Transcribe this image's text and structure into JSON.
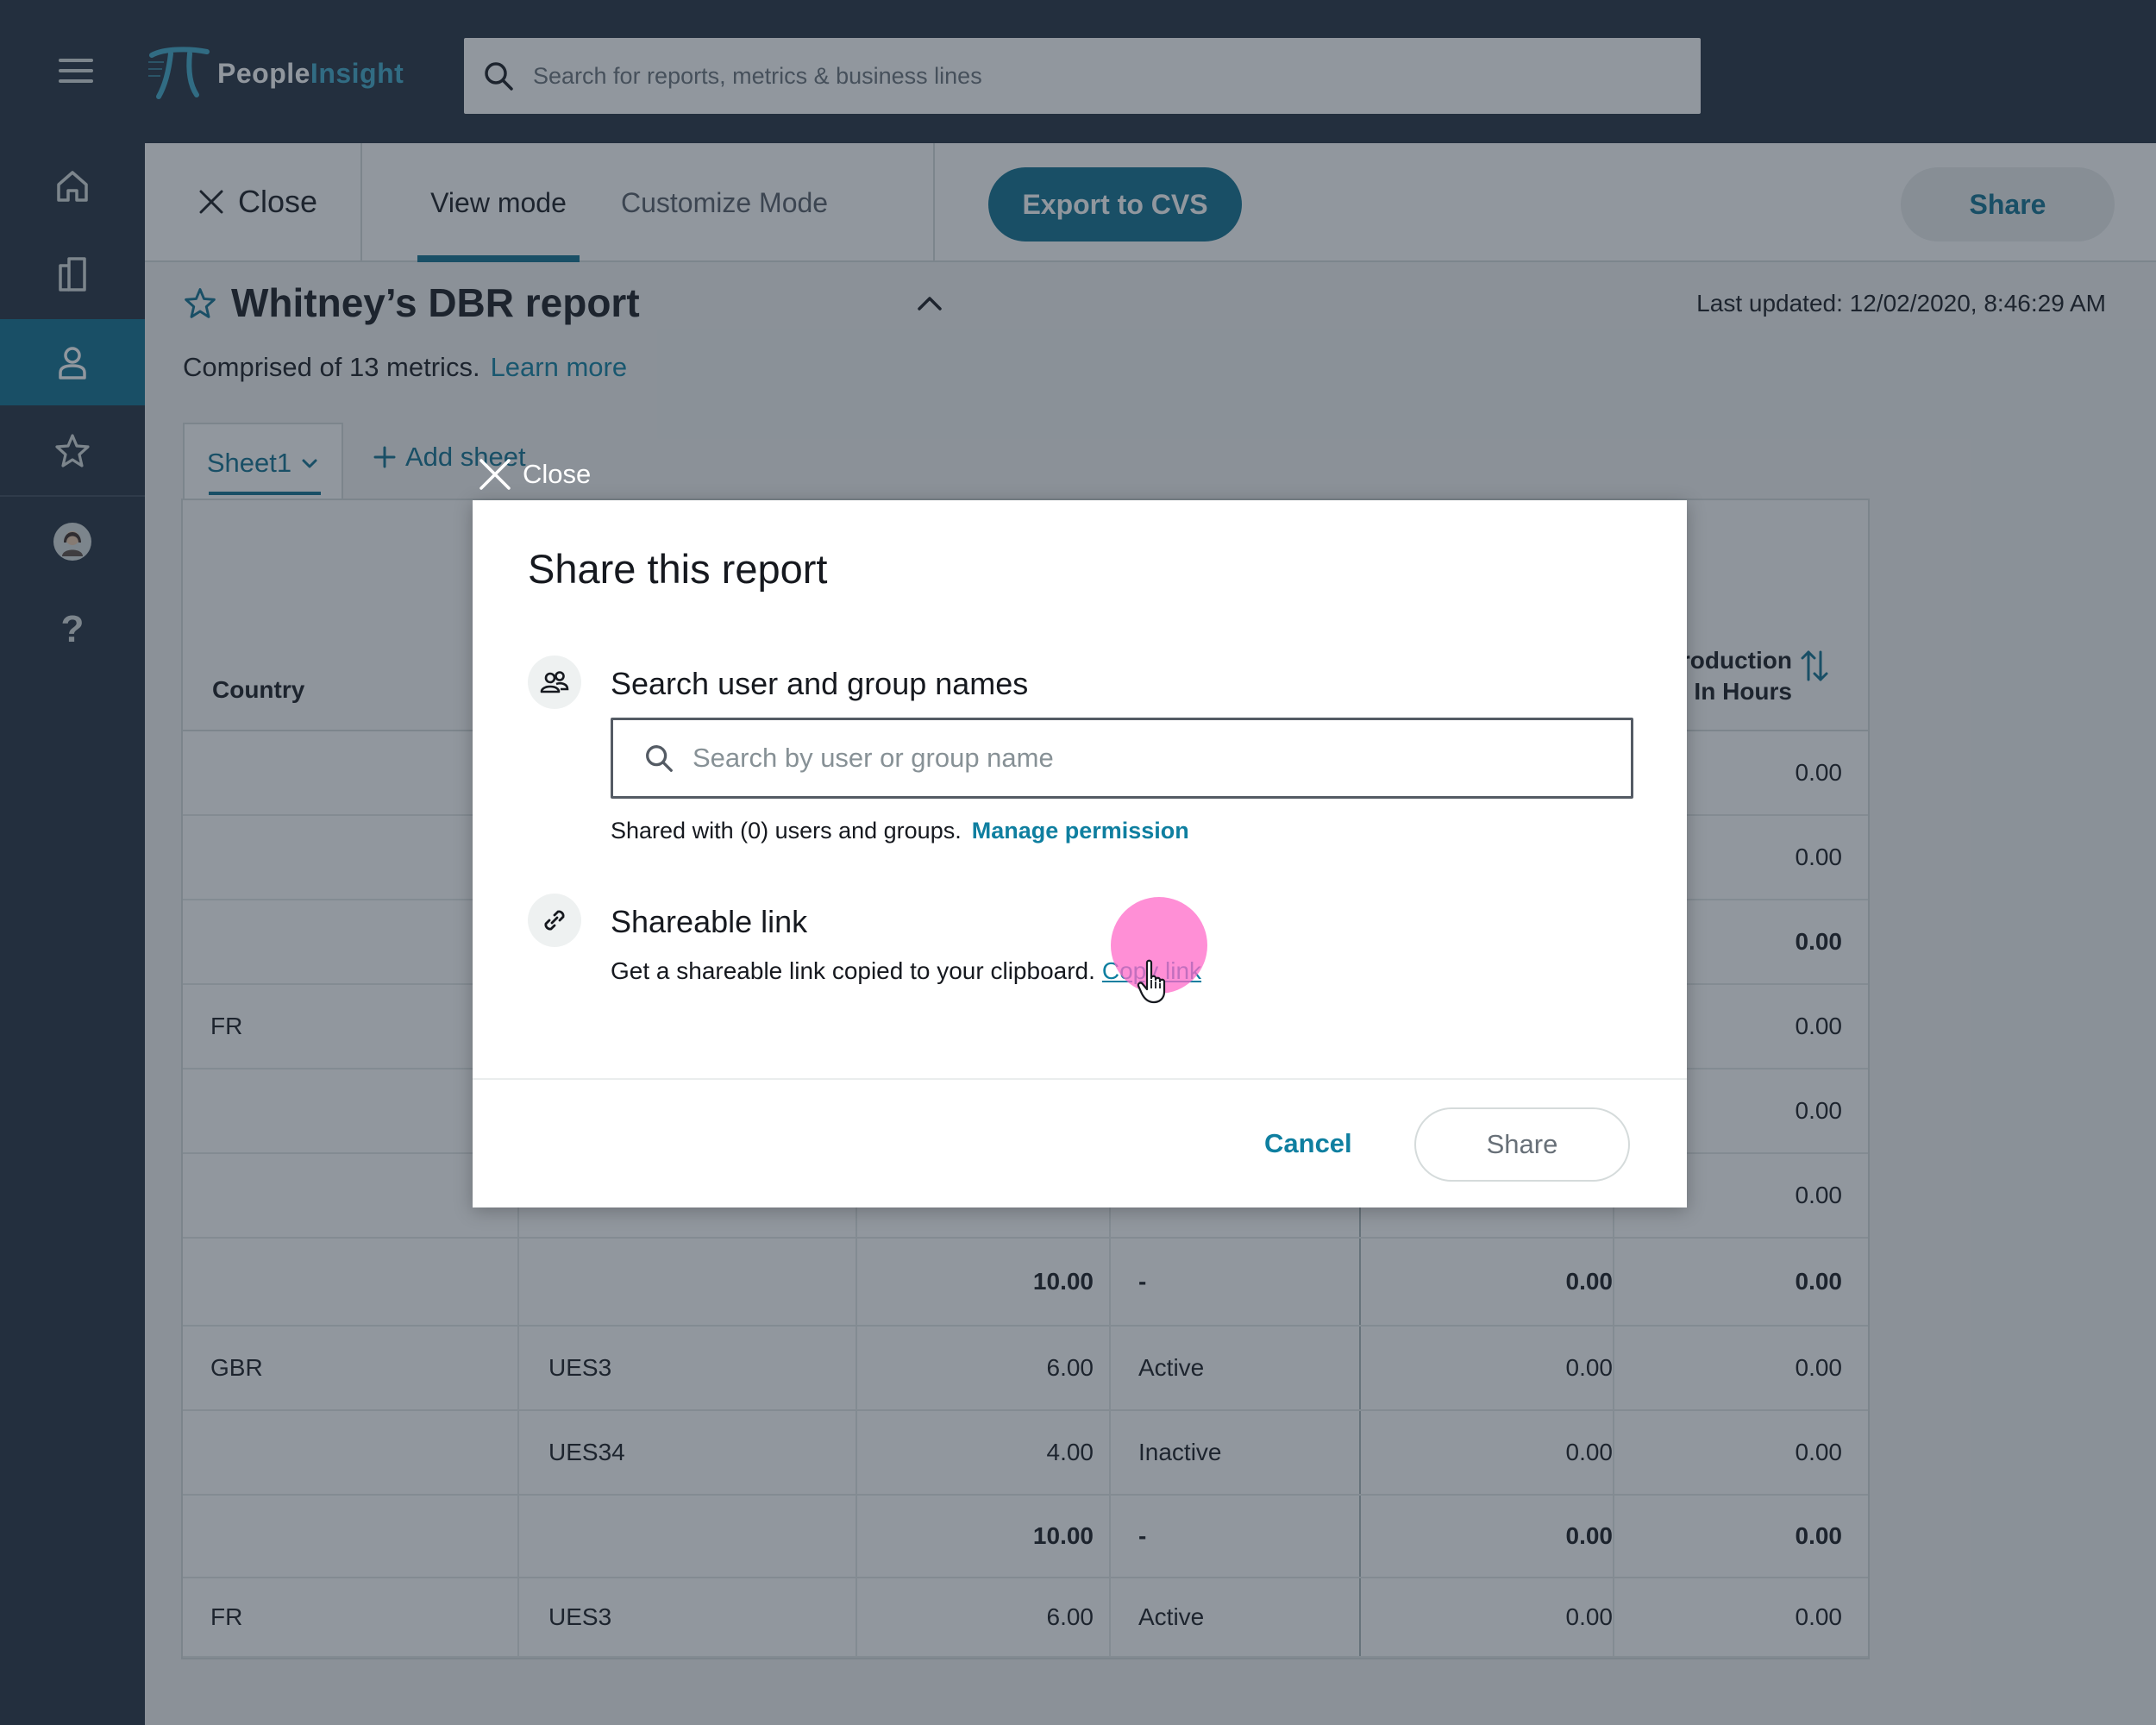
{
  "app": {
    "logo_word_1": "People",
    "logo_word_2": "Insight",
    "search_placeholder": "Search for reports, metrics & business lines",
    "colors": {
      "header_bg": "#232f3e",
      "accent": "#0f6f8f",
      "link": "#0f7fa0",
      "click_highlight": "#ff69c8"
    }
  },
  "rail": {
    "items": [
      {
        "icon": "home-icon"
      },
      {
        "icon": "reports-icon"
      },
      {
        "icon": "person-icon",
        "active": true
      },
      {
        "icon": "star-icon"
      },
      {
        "icon": "avatar"
      },
      {
        "icon": "help-icon",
        "glyph": "?"
      }
    ]
  },
  "toolbar": {
    "close_label": "Close",
    "tab_view": "View mode",
    "tab_customize": "Customize Mode",
    "export_label": "Export to CVS",
    "share_label": "Share"
  },
  "report": {
    "title": "Whitney’s DBR report",
    "last_updated": "Last updated: 12/02/2020, 8:46:29 AM",
    "subtitle": "Comprised of 13 metrics.",
    "learn_more": "Learn more",
    "sheet_tab": "Sheet1",
    "add_sheet": "Add sheet"
  },
  "table": {
    "header_country": "Country",
    "header_late": "roduction Late In Hours",
    "rows": [
      {
        "country": "",
        "id": "",
        "num": "",
        "status": "",
        "v1": "",
        "v2": "0.00",
        "total": false
      },
      {
        "country": "",
        "id": "",
        "num": "",
        "status": "",
        "v1": "",
        "v2": "0.00",
        "total": false
      },
      {
        "country": "",
        "id": "",
        "num": "",
        "status": "",
        "v1": "",
        "v2": "0.00",
        "total": true
      },
      {
        "country": "FR",
        "id": "",
        "num": "",
        "status": "",
        "v1": "",
        "v2": "0.00",
        "total": false
      },
      {
        "country": "",
        "id": "",
        "num": "",
        "status": "",
        "v1": "",
        "v2": "0.00",
        "total": false
      },
      {
        "country": "",
        "id": "",
        "num": "",
        "status": "",
        "v1": "",
        "v2": "0.00",
        "total": false
      },
      {
        "country": "",
        "id": "",
        "num": "10.00",
        "status": "-",
        "v1": "0.00",
        "v2": "0.00",
        "total": true
      },
      {
        "country": "GBR",
        "id": "UES3",
        "num": "6.00",
        "status": "Active",
        "v1": "0.00",
        "v2": "0.00",
        "total": false
      },
      {
        "country": "",
        "id": "UES34",
        "num": "4.00",
        "status": "Inactive",
        "v1": "0.00",
        "v2": "0.00",
        "total": false
      },
      {
        "country": "",
        "id": "",
        "num": "10.00",
        "status": "-",
        "v1": "0.00",
        "v2": "0.00",
        "total": true
      },
      {
        "country": "FR",
        "id": "UES3",
        "num": "6.00",
        "status": "Active",
        "v1": "0.00",
        "v2": "0.00",
        "total": false
      }
    ]
  },
  "modal": {
    "close_label": "Close",
    "title": "Share this report",
    "search_heading": "Search user and group names",
    "search_placeholder": "Search by user or group name",
    "shared_text": "Shared with (0) users and groups.",
    "manage_permission": "Manage permission",
    "link_heading": "Shareable link",
    "link_text": "Get a shareable link copied to your clipboard.",
    "copy_link": "Copy link",
    "cancel_label": "Cancel",
    "share_label": "Share"
  }
}
